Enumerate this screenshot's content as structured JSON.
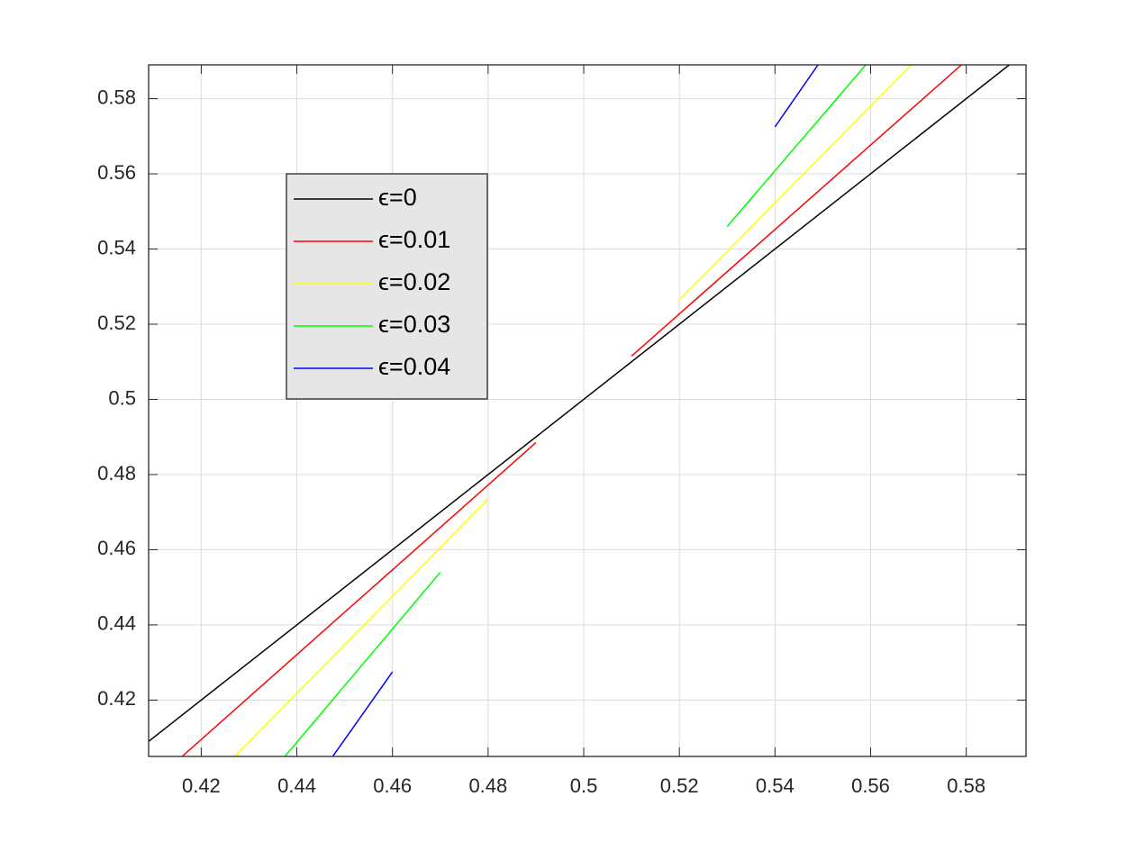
{
  "chart_data": {
    "type": "line",
    "xlim": [
      0.409,
      0.5925
    ],
    "ylim": [
      0.405,
      0.589
    ],
    "xticks": [
      0.42,
      0.44,
      0.46,
      0.48,
      0.5,
      0.52,
      0.54,
      0.56,
      0.58
    ],
    "yticks": [
      0.42,
      0.44,
      0.46,
      0.48,
      0.5,
      0.52,
      0.54,
      0.56,
      0.58
    ],
    "grid": true,
    "legend": "upper left",
    "series": [
      {
        "name": "ϵ=0",
        "color": "#000000",
        "x": [
          0.409,
          0.589
        ],
        "values": [
          0.409,
          0.589
        ]
      },
      {
        "name": "ϵ=0.01",
        "color": "#ff0000",
        "x": [
          0.416,
          0.49,
          null,
          0.51,
          0.579
        ],
        "values": [
          0.405,
          0.4885,
          null,
          0.5115,
          0.589
        ]
      },
      {
        "name": "ϵ=0.02",
        "color": "#ffff00",
        "x": [
          0.427,
          0.48,
          null,
          0.52,
          0.5685
        ],
        "values": [
          0.405,
          0.4735,
          null,
          0.5265,
          0.589
        ]
      },
      {
        "name": "ϵ=0.03",
        "color": "#00ff00",
        "x": [
          0.4375,
          0.47,
          null,
          0.53,
          0.559
        ],
        "values": [
          0.405,
          0.454,
          null,
          0.546,
          0.589
        ]
      },
      {
        "name": "ϵ=0.04",
        "color": "#0000ff",
        "x": [
          0.4475,
          0.46,
          null,
          0.54,
          0.549
        ],
        "values": [
          0.405,
          0.4275,
          null,
          0.5725,
          0.589
        ]
      }
    ]
  }
}
